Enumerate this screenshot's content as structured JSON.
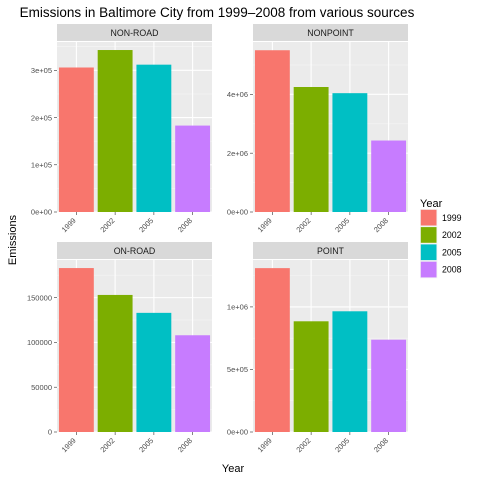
{
  "chart_data": {
    "type": "bar",
    "title": "Emissions in Baltimore City from 1999–2008 from various sources",
    "xlabel": "Year",
    "ylabel": "Emissions",
    "categories": [
      "1999",
      "2002",
      "2005",
      "2008"
    ],
    "legend": {
      "title": "Year",
      "placement": "right",
      "items": [
        {
          "label": "1999",
          "color": "#F8766D"
        },
        {
          "label": "2002",
          "color": "#7CAE00"
        },
        {
          "label": "2005",
          "color": "#00BFC4"
        },
        {
          "label": "2008",
          "color": "#C77CFF"
        }
      ]
    },
    "grid": true,
    "facets": [
      {
        "name": "NON-ROAD",
        "values": [
          306000,
          343000,
          312000,
          183000
        ],
        "ylim": [
          0,
          360000
        ],
        "ticks": [
          {
            "value": 0,
            "label": "0e+00"
          },
          {
            "value": 100000,
            "label": "1e+05"
          },
          {
            "value": 200000,
            "label": "2e+05"
          },
          {
            "value": 300000,
            "label": "3e+05"
          }
        ]
      },
      {
        "name": "NONPOINT",
        "values": [
          5500000,
          4250000,
          4040000,
          2430000
        ],
        "ylim": [
          0,
          5780000
        ],
        "ticks": [
          {
            "value": 0,
            "label": "0e+00"
          },
          {
            "value": 2000000,
            "label": "2e+06"
          },
          {
            "value": 4000000,
            "label": "4e+06"
          }
        ]
      },
      {
        "name": "ON-ROAD",
        "values": [
          183000,
          153000,
          133000,
          108000
        ],
        "ylim": [
          0,
          192000
        ],
        "ticks": [
          {
            "value": 0,
            "label": "0"
          },
          {
            "value": 50000,
            "label": "50000"
          },
          {
            "value": 100000,
            "label": "100000"
          },
          {
            "value": 150000,
            "label": "150000"
          }
        ]
      },
      {
        "name": "POINT",
        "values": [
          1310000,
          885000,
          965000,
          738000
        ],
        "ylim": [
          0,
          1375000
        ],
        "ticks": [
          {
            "value": 0,
            "label": "0e+00"
          },
          {
            "value": 500000,
            "label": "5e+05"
          },
          {
            "value": 1000000,
            "label": "1e+06"
          }
        ]
      }
    ]
  }
}
